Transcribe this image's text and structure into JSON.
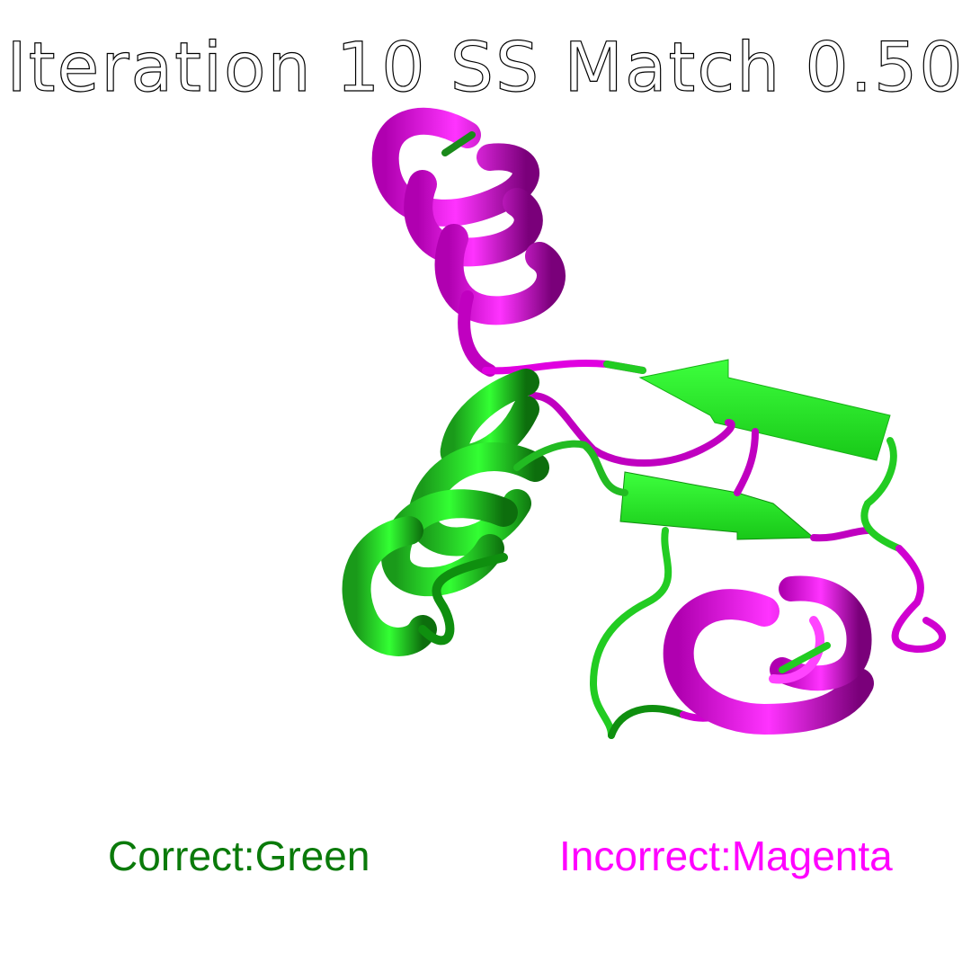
{
  "title": "Iteration 10 SS Match 0.50",
  "legend": {
    "correct_label": "Correct:Green",
    "incorrect_label": "Incorrect:Magenta"
  },
  "colors": {
    "correct": "#2fe62f",
    "correct_dark": "#0b8a0b",
    "incorrect": "#ff00ff",
    "incorrect_dark": "#800080",
    "background": "#ffffff",
    "legend_correct_text": "#0a7a0a",
    "legend_incorrect_text": "#ff00ff"
  }
}
